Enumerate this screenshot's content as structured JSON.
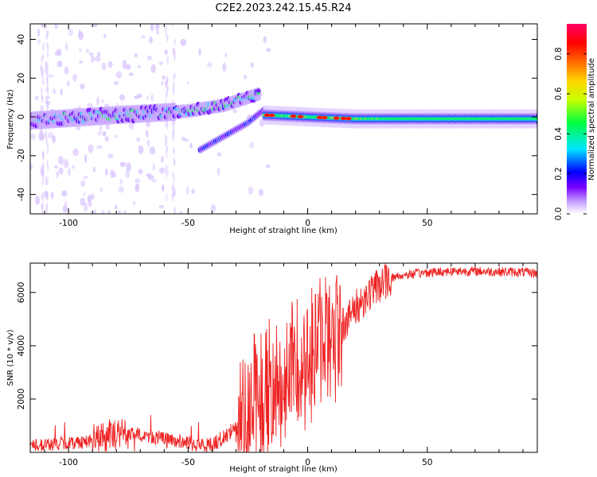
{
  "title": "C2E2.2023.242.15.45.R24",
  "chart_data": [
    {
      "type": "heatmap",
      "xlabel": "Height of straight line (km)",
      "ylabel": "Frequency (Hz)",
      "xlim": [
        -116,
        96
      ],
      "ylim": [
        -50,
        48
      ],
      "xticks": [
        -100,
        -50,
        0,
        50
      ],
      "yticks": [
        -40,
        -20,
        0,
        20,
        40
      ],
      "colorbar": {
        "label": "Normalized spectral amplitude",
        "range": [
          0.0,
          0.95
        ],
        "ticks": [
          "0.0",
          "0.2",
          "0.4",
          "0.6",
          "0.8"
        ],
        "tick_values": [
          0.0,
          0.2,
          0.4,
          0.6,
          0.8
        ],
        "colormap": [
          "#ffffff",
          "#c8a8ff",
          "#7a00ff",
          "#0000ff",
          "#00e5ff",
          "#00ff40",
          "#c8ff00",
          "#ffd400",
          "#ff6a00",
          "#ff0000",
          "#ff0066"
        ]
      },
      "features": [
        {
          "name": "main-ridge-upper-left",
          "x": [
            -116,
            -80,
            -50,
            -35,
            -20
          ],
          "y": [
            -2,
            1,
            3,
            6,
            12
          ],
          "amplitude": 0.3
        },
        {
          "name": "branch-lower",
          "x": [
            -45,
            -35,
            -25,
            -18
          ],
          "y": [
            -17,
            -10,
            -3,
            4
          ],
          "amplitude": 0.15
        },
        {
          "name": "plateau-right",
          "x": [
            -18,
            0,
            20,
            50,
            96
          ],
          "y": [
            1,
            0,
            -1,
            -1,
            -1
          ],
          "amplitude": 0.55
        }
      ]
    },
    {
      "type": "line",
      "xlabel": "Height of straight line (km)",
      "ylabel": "SNR (10 * v/v)",
      "xlim": [
        -116,
        96
      ],
      "ylim": [
        0,
        7100
      ],
      "xticks": [
        -100,
        -50,
        0,
        50
      ],
      "yticks": [
        2000,
        4000,
        6000
      ],
      "series_color": "#ee2222",
      "trend": {
        "x": [
          -116,
          -100,
          -90,
          -80,
          -70,
          -60,
          -50,
          -45,
          -40,
          -35,
          -30,
          -25,
          -20,
          -15,
          -12,
          -8,
          -5,
          0,
          5,
          10,
          15,
          20,
          25,
          30,
          35,
          40,
          50,
          60,
          70,
          80,
          90,
          96
        ],
        "y": [
          250,
          350,
          450,
          700,
          650,
          500,
          350,
          250,
          300,
          550,
          1000,
          1800,
          2000,
          2300,
          2600,
          3000,
          3300,
          3700,
          4100,
          4500,
          4800,
          5400,
          5900,
          6300,
          6550,
          6650,
          6750,
          6800,
          6800,
          6780,
          6760,
          6720
        ]
      }
    }
  ]
}
